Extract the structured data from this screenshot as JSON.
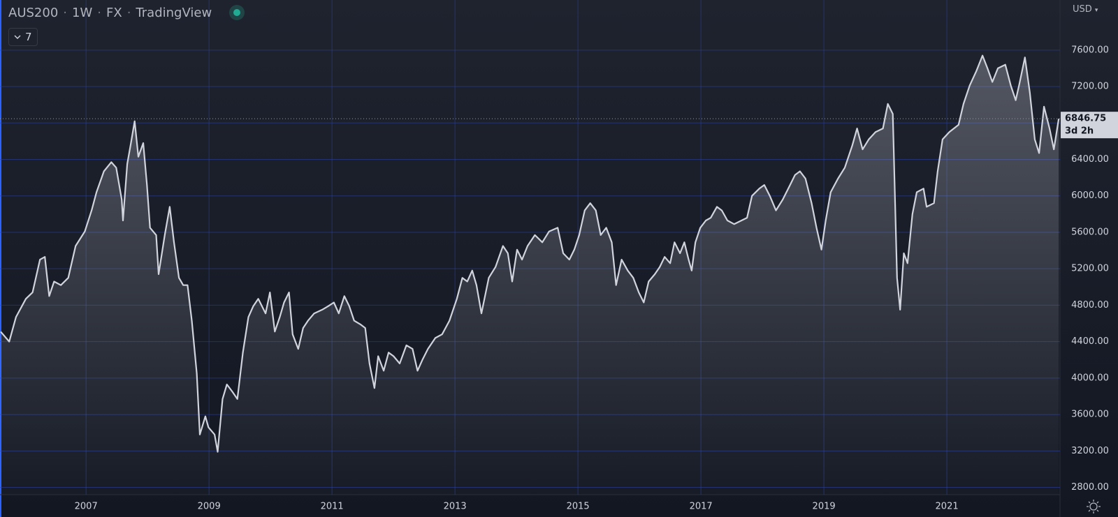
{
  "chart_data": {
    "type": "area",
    "symbol": "AUS200",
    "interval": "1W",
    "exchange": "FX",
    "source": "TradingView",
    "indicator_count": 7,
    "currency": "USD",
    "countdown": "3d 2h",
    "color": "#d1d4dc",
    "grid": true,
    "xlim": [
      2005.6,
      2022.84
    ],
    "ylim": [
      2720,
      8150
    ],
    "xticks": [
      2007,
      2009,
      2011,
      2013,
      2015,
      2017,
      2019,
      2021
    ],
    "yticks": [
      {
        "value": 2800,
        "label": "2800.00"
      },
      {
        "value": 3200,
        "label": "3200.00"
      },
      {
        "value": 3600,
        "label": "3600.00"
      },
      {
        "value": 4000,
        "label": "4000.00"
      },
      {
        "value": 4400,
        "label": "4400.00"
      },
      {
        "value": 4800,
        "label": "4800.00"
      },
      {
        "value": 5200,
        "label": "5200.00"
      },
      {
        "value": 5600,
        "label": "5600.00"
      },
      {
        "value": 6000,
        "label": "6000.00"
      },
      {
        "value": 6400,
        "label": "6400.00"
      },
      {
        "value": 6800,
        "label": "6800.00"
      },
      {
        "value": 7200,
        "label": "7200.00"
      },
      {
        "value": 7600,
        "label": "7600.00"
      }
    ],
    "x": [
      2005.61,
      2005.75,
      2005.86,
      2006.02,
      2006.13,
      2006.25,
      2006.33,
      2006.4,
      2006.48,
      2006.59,
      2006.71,
      2006.83,
      2006.98,
      2007.09,
      2007.17,
      2007.29,
      2007.41,
      2007.49,
      2007.58,
      2007.6,
      2007.67,
      2007.73,
      2007.79,
      2007.85,
      2007.93,
      2007.99,
      2008.04,
      2008.14,
      2008.18,
      2008.28,
      2008.36,
      2008.43,
      2008.51,
      2008.58,
      2008.65,
      2008.72,
      2008.8,
      2008.85,
      2008.94,
      2008.99,
      2009.09,
      2009.14,
      2009.22,
      2009.29,
      2009.38,
      2009.46,
      2009.55,
      2009.64,
      2009.72,
      2009.8,
      2009.92,
      2009.99,
      2010.07,
      2010.15,
      2010.22,
      2010.3,
      2010.36,
      2010.45,
      2010.53,
      2010.61,
      2010.71,
      2010.84,
      2010.94,
      2011.03,
      2011.11,
      2011.2,
      2011.28,
      2011.36,
      2011.46,
      2011.54,
      2011.61,
      2011.69,
      2011.75,
      2011.84,
      2011.92,
      2012.0,
      2012.1,
      2012.21,
      2012.31,
      2012.39,
      2012.47,
      2012.56,
      2012.68,
      2012.79,
      2012.91,
      2013.03,
      2013.12,
      2013.2,
      2013.28,
      2013.35,
      2013.43,
      2013.55,
      2013.66,
      2013.78,
      2013.86,
      2013.93,
      2014.01,
      2014.09,
      2014.18,
      2014.3,
      2014.42,
      2014.53,
      2014.67,
      2014.76,
      2014.86,
      2014.94,
      2015.02,
      2015.11,
      2015.2,
      2015.29,
      2015.37,
      2015.46,
      2015.55,
      2015.62,
      2015.71,
      2015.81,
      2015.9,
      2015.99,
      2016.07,
      2016.15,
      2016.25,
      2016.33,
      2016.41,
      2016.5,
      2016.57,
      2016.66,
      2016.73,
      2016.8,
      2016.85,
      2016.91,
      2016.99,
      2017.08,
      2017.16,
      2017.26,
      2017.34,
      2017.43,
      2017.54,
      2017.66,
      2017.75,
      2017.83,
      2017.95,
      2018.03,
      2018.12,
      2018.22,
      2018.33,
      2018.45,
      2018.53,
      2018.61,
      2018.7,
      2018.8,
      2018.88,
      2018.96,
      2019.03,
      2019.11,
      2019.23,
      2019.34,
      2019.46,
      2019.54,
      2019.63,
      2019.73,
      2019.84,
      2019.96,
      2020.04,
      2020.12,
      2020.19,
      2020.24,
      2020.3,
      2020.36,
      2020.44,
      2020.51,
      2020.62,
      2020.67,
      2020.79,
      2020.85,
      2020.93,
      2021.04,
      2021.19,
      2021.27,
      2021.37,
      2021.48,
      2021.58,
      2021.66,
      2021.74,
      2021.83,
      2021.95,
      2022.04,
      2022.12,
      2022.18,
      2022.27,
      2022.35,
      2022.43,
      2022.5,
      2022.58,
      2022.67,
      2022.74,
      2022.82
    ],
    "values": [
      4510,
      4400,
      4670,
      4870,
      4940,
      5300,
      5330,
      4900,
      5060,
      5020,
      5100,
      5450,
      5610,
      5840,
      6040,
      6270,
      6370,
      6310,
      5960,
      5730,
      6350,
      6580,
      6820,
      6430,
      6580,
      6120,
      5650,
      5570,
      5140,
      5570,
      5880,
      5490,
      5100,
      5020,
      5020,
      4630,
      4050,
      3380,
      3580,
      3460,
      3380,
      3190,
      3770,
      3930,
      3850,
      3770,
      4280,
      4670,
      4790,
      4870,
      4710,
      4940,
      4510,
      4670,
      4830,
      4940,
      4480,
      4320,
      4550,
      4630,
      4710,
      4750,
      4790,
      4830,
      4710,
      4900,
      4790,
      4630,
      4590,
      4550,
      4160,
      3890,
      4240,
      4080,
      4280,
      4240,
      4160,
      4360,
      4320,
      4080,
      4200,
      4320,
      4440,
      4480,
      4630,
      4870,
      5100,
      5060,
      5180,
      5020,
      4710,
      5100,
      5220,
      5450,
      5370,
      5060,
      5410,
      5300,
      5450,
      5570,
      5490,
      5610,
      5650,
      5370,
      5300,
      5410,
      5570,
      5840,
      5920,
      5840,
      5570,
      5650,
      5490,
      5020,
      5300,
      5180,
      5100,
      4940,
      4830,
      5060,
      5140,
      5220,
      5330,
      5260,
      5490,
      5370,
      5490,
      5300,
      5180,
      5490,
      5650,
      5730,
      5760,
      5880,
      5840,
      5730,
      5690,
      5730,
      5760,
      6000,
      6080,
      6120,
      6000,
      5840,
      5960,
      6120,
      6230,
      6270,
      6190,
      5920,
      5650,
      5410,
      5730,
      6040,
      6190,
      6310,
      6550,
      6740,
      6510,
      6620,
      6700,
      6740,
      7010,
      6900,
      5100,
      4750,
      5370,
      5260,
      5800,
      6040,
      6080,
      5880,
      5920,
      6270,
      6620,
      6700,
      6780,
      7010,
      7210,
      7370,
      7540,
      7400,
      7250,
      7400,
      7440,
      7210,
      7050,
      7230,
      7520,
      7130,
      6620,
      6470,
      6980,
      6740,
      6510,
      6846.75
    ]
  }
}
